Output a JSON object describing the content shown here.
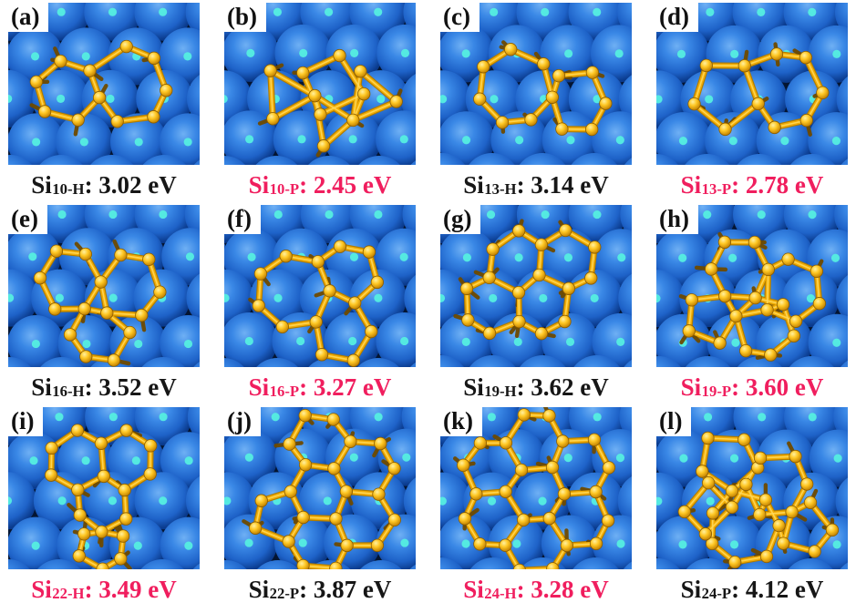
{
  "colors": {
    "text_black": "#161616",
    "text_red": "#f01e5e",
    "substrate_blue": "#2e7bdc",
    "substrate_dark": "#0a3a8c",
    "substrate_gap": "#041532",
    "substrate_highlight": "#55eee0",
    "cluster_gold": "#f2ad06",
    "cluster_gold_dark": "#b07c00",
    "cluster_gold_light": "#ffd95a",
    "panel_label_bg": "#ffffff"
  },
  "panels": [
    {
      "letter": "(a)",
      "species": "Si",
      "subscript": "10-H",
      "energy": ": 3.02 eV",
      "color": "black",
      "rings": [
        [
          6,
          66,
          98,
          34,
          15
        ],
        [
          7,
          136,
          90,
          40,
          5
        ]
      ]
    },
    {
      "letter": "(b)",
      "species": "Si",
      "subscript": "10-P",
      "energy": ": 2.45 eV",
      "color": "red",
      "rings": [
        [
          3,
          70,
          102,
          32,
          0
        ],
        [
          4,
          118,
          90,
          36,
          20
        ],
        [
          3,
          163,
          104,
          30,
          10
        ],
        [
          3,
          122,
          134,
          26,
          0
        ]
      ]
    },
    {
      "letter": "(c)",
      "species": "Si",
      "subscript": "13-H",
      "energy": ": 3.14 eV",
      "color": "black",
      "rings": [
        [
          7,
          82,
          95,
          42,
          8
        ],
        [
          6,
          150,
          108,
          34,
          0
        ]
      ]
    },
    {
      "letter": "(d)",
      "species": "Si",
      "subscript": "13-P",
      "energy": ": 2.78 eV",
      "color": "red",
      "rings": [
        [
          5,
          76,
          100,
          36,
          18
        ],
        [
          7,
          140,
          96,
          42,
          0
        ]
      ]
    },
    {
      "letter": "(e)",
      "species": "Si",
      "subscript": "16-H",
      "energy": ": 3.52 eV",
      "color": "black",
      "rings": [
        [
          6,
          70,
          82,
          34,
          0
        ],
        [
          6,
          134,
          90,
          36,
          10
        ],
        [
          6,
          100,
          140,
          33,
          0
        ]
      ]
    },
    {
      "letter": "(f)",
      "species": "Si",
      "subscript": "16-P",
      "energy": ": 3.27 eV",
      "color": "red",
      "rings": [
        [
          7,
          76,
          95,
          40,
          0
        ],
        [
          6,
          136,
          76,
          32,
          15
        ],
        [
          6,
          130,
          138,
          34,
          5
        ]
      ]
    },
    {
      "letter": "(g)",
      "species": "Si",
      "subscript": "19-H",
      "energy": ": 3.62 eV",
      "color": "black",
      "rings": [
        [
          6,
          84,
          62,
          32,
          90
        ],
        [
          6,
          141,
          62,
          32,
          90
        ],
        [
          6,
          113,
          110,
          32,
          90
        ],
        [
          6,
          56,
          110,
          32,
          90
        ]
      ]
    },
    {
      "letter": "(h)",
      "species": "Si",
      "subscript": "19-P",
      "energy": ": 3.60 eV",
      "color": "red",
      "rings": [
        [
          6,
          92,
          72,
          33,
          0
        ],
        [
          6,
          150,
          94,
          33,
          20
        ],
        [
          5,
          60,
          122,
          29,
          0
        ],
        [
          6,
          118,
          136,
          33,
          10
        ]
      ]
    },
    {
      "letter": "(i)",
      "species": "Si",
      "subscript": "22-H",
      "energy": ": 3.49 eV",
      "color": "red",
      "rings": [
        [
          6,
          76,
          58,
          31,
          90
        ],
        [
          6,
          131,
          58,
          31,
          90
        ],
        [
          6,
          104,
          105,
          31,
          90
        ],
        [
          6,
          104,
          152,
          26,
          90
        ]
      ]
    },
    {
      "letter": "(j)",
      "species": "Si",
      "subscript": "22-P",
      "energy": ": 3.87 eV",
      "color": "black",
      "rings": [
        [
          6,
          106,
          94,
          32,
          0
        ],
        [
          6,
          154,
          66,
          32,
          0
        ],
        [
          6,
          154,
          122,
          32,
          0
        ],
        [
          6,
          106,
          149,
          32,
          0
        ],
        [
          6,
          106,
          39,
          32,
          0
        ],
        [
          5,
          60,
          120,
          28,
          10
        ]
      ]
    },
    {
      "letter": "(k)",
      "species": "Si",
      "subscript": "24-H",
      "energy": ": 3.28 eV",
      "color": "red",
      "rings": [
        [
          6,
          106,
          94,
          32,
          0
        ],
        [
          6,
          154,
          66,
          32,
          0
        ],
        [
          6,
          154,
          122,
          32,
          0
        ],
        [
          6,
          106,
          149,
          32,
          0
        ],
        [
          6,
          58,
          122,
          32,
          0
        ],
        [
          6,
          58,
          66,
          32,
          0
        ],
        [
          6,
          106,
          39,
          32,
          0
        ]
      ]
    },
    {
      "letter": "(l)",
      "species": "Si",
      "subscript": "24-P",
      "energy": ": 4.12 eV",
      "color": "black",
      "rings": [
        [
          5,
          80,
          60,
          32,
          15
        ],
        [
          6,
          134,
          86,
          34,
          0
        ],
        [
          7,
          98,
          132,
          38,
          0
        ],
        [
          5,
          164,
          132,
          28,
          0
        ],
        [
          4,
          56,
          112,
          26,
          0
        ]
      ]
    }
  ]
}
